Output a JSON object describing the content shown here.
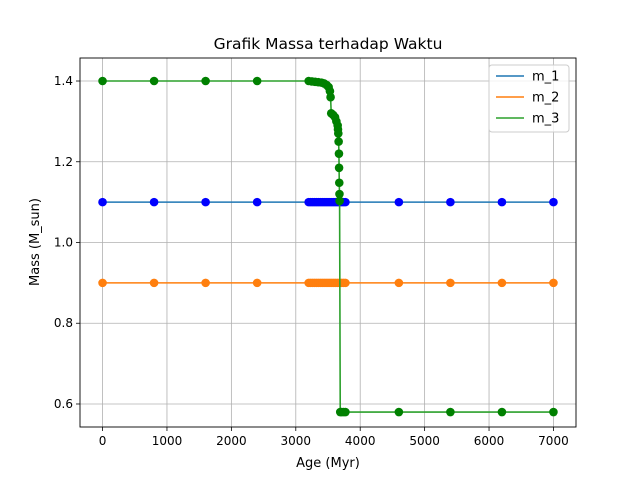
{
  "chart_data": {
    "type": "line",
    "title": "Grafik Massa terhadap Waktu",
    "xlabel": "Age (Myr)",
    "ylabel": "Mass (M_sun)",
    "xlim": [
      -350,
      7350
    ],
    "ylim": [
      0.543,
      1.457
    ],
    "xticks": [
      0,
      1000,
      2000,
      3000,
      4000,
      5000,
      6000,
      7000
    ],
    "xtick_labels": [
      "0",
      "1000",
      "2000",
      "3000",
      "4000",
      "5000",
      "6000",
      "7000"
    ],
    "yticks": [
      0.6,
      0.8,
      1.0,
      1.2,
      1.4
    ],
    "ytick_labels": [
      "0.6",
      "0.8",
      "1.0",
      "1.2",
      "1.4"
    ],
    "grid": true,
    "legend_position": "top-right",
    "series": [
      {
        "name": "m_1",
        "line_color": "#1f77b4",
        "marker_color": "#0000ff",
        "points": [
          [
            0,
            1.1
          ],
          [
            800,
            1.1
          ],
          [
            1600,
            1.1
          ],
          [
            2400,
            1.1
          ],
          [
            3200,
            1.1
          ],
          [
            3230,
            1.1
          ],
          [
            3260,
            1.1
          ],
          [
            3290,
            1.1
          ],
          [
            3320,
            1.1
          ],
          [
            3350,
            1.1
          ],
          [
            3380,
            1.1
          ],
          [
            3410,
            1.1
          ],
          [
            3440,
            1.1
          ],
          [
            3470,
            1.1
          ],
          [
            3500,
            1.1
          ],
          [
            3530,
            1.1
          ],
          [
            3560,
            1.1
          ],
          [
            3590,
            1.1
          ],
          [
            3620,
            1.1
          ],
          [
            3650,
            1.1
          ],
          [
            3680,
            1.1
          ],
          [
            3710,
            1.1
          ],
          [
            3740,
            1.1
          ],
          [
            3770,
            1.1
          ],
          [
            4600,
            1.1
          ],
          [
            5400,
            1.1
          ],
          [
            6200,
            1.1
          ],
          [
            7000,
            1.1
          ]
        ]
      },
      {
        "name": "m_2",
        "line_color": "#ff7f0e",
        "marker_color": "#ff7f0e",
        "points": [
          [
            0,
            0.9
          ],
          [
            800,
            0.9
          ],
          [
            1600,
            0.9
          ],
          [
            2400,
            0.9
          ],
          [
            3200,
            0.9
          ],
          [
            3230,
            0.9
          ],
          [
            3260,
            0.9
          ],
          [
            3290,
            0.9
          ],
          [
            3320,
            0.9
          ],
          [
            3350,
            0.9
          ],
          [
            3380,
            0.9
          ],
          [
            3410,
            0.9
          ],
          [
            3440,
            0.9
          ],
          [
            3470,
            0.9
          ],
          [
            3500,
            0.9
          ],
          [
            3530,
            0.9
          ],
          [
            3560,
            0.9
          ],
          [
            3590,
            0.9
          ],
          [
            3620,
            0.9
          ],
          [
            3650,
            0.9
          ],
          [
            3680,
            0.9
          ],
          [
            3710,
            0.9
          ],
          [
            3740,
            0.9
          ],
          [
            3770,
            0.9
          ],
          [
            4600,
            0.9
          ],
          [
            5400,
            0.9
          ],
          [
            6200,
            0.9
          ],
          [
            7000,
            0.9
          ]
        ]
      },
      {
        "name": "m_3",
        "line_color": "#2ca02c",
        "marker_color": "#008000",
        "points": [
          [
            0,
            1.4
          ],
          [
            800,
            1.4
          ],
          [
            1600,
            1.4
          ],
          [
            2400,
            1.4
          ],
          [
            3200,
            1.4
          ],
          [
            3250,
            1.399
          ],
          [
            3300,
            1.398
          ],
          [
            3350,
            1.397
          ],
          [
            3400,
            1.396
          ],
          [
            3440,
            1.394
          ],
          [
            3480,
            1.39
          ],
          [
            3510,
            1.385
          ],
          [
            3530,
            1.375
          ],
          [
            3540,
            1.36
          ],
          [
            3550,
            1.32
          ],
          [
            3580,
            1.316
          ],
          [
            3610,
            1.31
          ],
          [
            3630,
            1.3
          ],
          [
            3650,
            1.29
          ],
          [
            3655,
            1.28
          ],
          [
            3660,
            1.27
          ],
          [
            3665,
            1.25
          ],
          [
            3670,
            1.22
          ],
          [
            3672,
            1.185
          ],
          [
            3675,
            1.148
          ],
          [
            3678,
            1.12
          ],
          [
            3680,
            1.103
          ],
          [
            3690,
            0.58
          ],
          [
            3710,
            0.58
          ],
          [
            3740,
            0.58
          ],
          [
            3770,
            0.58
          ],
          [
            4600,
            0.58
          ],
          [
            5400,
            0.58
          ],
          [
            6200,
            0.58
          ],
          [
            7000,
            0.58
          ]
        ]
      }
    ]
  }
}
